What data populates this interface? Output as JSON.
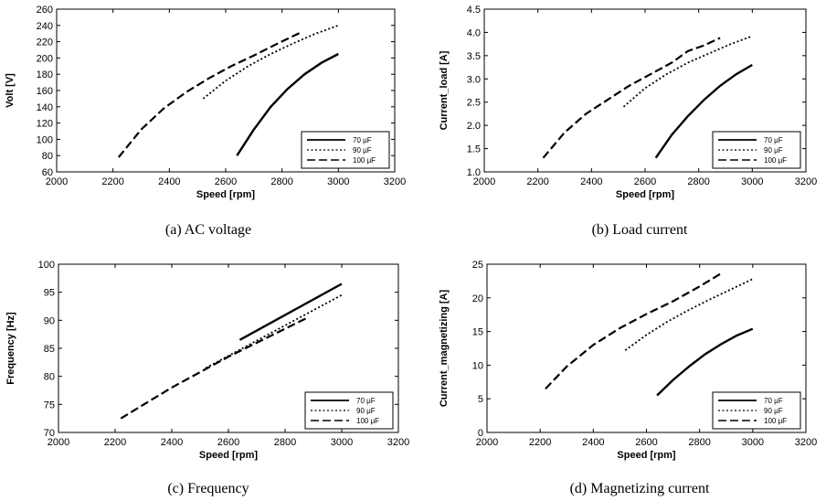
{
  "chart_data": [
    {
      "type": "line",
      "caption": "(a) AC voltage",
      "xlabel": "Speed [rpm]",
      "ylabel": "Volt [V]",
      "xlim": [
        2000,
        3200
      ],
      "ylim": [
        60,
        260
      ],
      "xticks": [
        "2000",
        "2200",
        "2400",
        "2600",
        "2800",
        "3000",
        "3200"
      ],
      "yticks": [
        "60",
        "80",
        "100",
        "120",
        "140",
        "160",
        "180",
        "200",
        "220",
        "240",
        "260"
      ],
      "legend_position": "bottom-right",
      "series": [
        {
          "name": "70 μF",
          "style": "solid",
          "x": [
            2640,
            2700,
            2760,
            2820,
            2880,
            2940,
            3000
          ],
          "y": [
            80,
            112,
            140,
            162,
            180,
            194,
            205
          ]
        },
        {
          "name": "90 μF",
          "style": "dotted",
          "x": [
            2520,
            2600,
            2680,
            2760,
            2840,
            2920,
            3000
          ],
          "y": [
            150,
            172,
            190,
            205,
            218,
            230,
            240
          ]
        },
        {
          "name": "100 μF",
          "style": "dashed",
          "x": [
            2220,
            2300,
            2380,
            2460,
            2540,
            2620,
            2700,
            2780,
            2870
          ],
          "y": [
            78,
            112,
            138,
            158,
            175,
            190,
            203,
            217,
            232
          ]
        }
      ]
    },
    {
      "type": "line",
      "caption": "(b) Load current",
      "xlabel": "Speed [rpm]",
      "ylabel": "Current_load [A]",
      "xlim": [
        2000,
        3200
      ],
      "ylim": [
        1.0,
        4.5
      ],
      "xticks": [
        "2000",
        "2200",
        "2400",
        "2600",
        "2800",
        "3000",
        "3200"
      ],
      "yticks": [
        "1.0",
        "1.5",
        "2.0",
        "2.5",
        "3.0",
        "3.5",
        "4.0",
        "4.5"
      ],
      "legend_position": "bottom-right",
      "series": [
        {
          "name": "70 μF",
          "style": "solid",
          "x": [
            2640,
            2700,
            2760,
            2820,
            2880,
            2940,
            3000
          ],
          "y": [
            1.3,
            1.8,
            2.2,
            2.55,
            2.85,
            3.1,
            3.3
          ]
        },
        {
          "name": "90 μF",
          "style": "dotted",
          "x": [
            2520,
            2600,
            2680,
            2760,
            2840,
            2920,
            3000
          ],
          "y": [
            2.4,
            2.8,
            3.1,
            3.35,
            3.55,
            3.75,
            3.92
          ]
        },
        {
          "name": "100 μF",
          "style": "dashed",
          "x": [
            2220,
            2300,
            2380,
            2460,
            2540,
            2620,
            2700,
            2760,
            2820,
            2880
          ],
          "y": [
            1.3,
            1.85,
            2.25,
            2.55,
            2.85,
            3.1,
            3.35,
            3.6,
            3.72,
            3.88
          ]
        }
      ]
    },
    {
      "type": "line",
      "caption": "(c) Frequency",
      "xlabel": "Speed [rpm]",
      "ylabel": "Frequency [Hz]",
      "xlim": [
        2000,
        3200
      ],
      "ylim": [
        70,
        100
      ],
      "xticks": [
        "2000",
        "2200",
        "2400",
        "2600",
        "2800",
        "3000",
        "3200"
      ],
      "yticks": [
        "70",
        "75",
        "80",
        "85",
        "90",
        "95",
        "100"
      ],
      "legend_position": "bottom-right",
      "series": [
        {
          "name": "70 μF",
          "style": "solid",
          "x": [
            2640,
            3000
          ],
          "y": [
            86.5,
            96.5
          ]
        },
        {
          "name": "90 μF",
          "style": "dotted",
          "x": [
            2520,
            3000
          ],
          "y": [
            81.5,
            94.5
          ]
        },
        {
          "name": "100 μF",
          "style": "dashed",
          "x": [
            2220,
            2400,
            2600,
            2880
          ],
          "y": [
            72.5,
            78,
            83.5,
            90.5
          ]
        }
      ]
    },
    {
      "type": "line",
      "caption": "(d) Magnetizing current",
      "xlabel": "Speed [rpm]",
      "ylabel": "Current_magnetizing [A]",
      "xlim": [
        2000,
        3200
      ],
      "ylim": [
        0,
        25
      ],
      "xticks": [
        "2000",
        "2200",
        "2400",
        "2600",
        "2800",
        "3000",
        "3200"
      ],
      "yticks": [
        "0",
        "5",
        "10",
        "15",
        "20",
        "25"
      ],
      "legend_position": "bottom-right",
      "series": [
        {
          "name": "70 μF",
          "style": "solid",
          "x": [
            2640,
            2700,
            2760,
            2820,
            2880,
            2940,
            3000
          ],
          "y": [
            5.5,
            7.8,
            9.8,
            11.6,
            13.1,
            14.4,
            15.4
          ]
        },
        {
          "name": "90 μF",
          "style": "dotted",
          "x": [
            2520,
            2600,
            2680,
            2760,
            2840,
            2920,
            3000
          ],
          "y": [
            12.2,
            14.5,
            16.5,
            18.2,
            19.8,
            21.3,
            22.8
          ]
        },
        {
          "name": "100 μF",
          "style": "dashed",
          "x": [
            2220,
            2300,
            2400,
            2500,
            2600,
            2700,
            2800,
            2880
          ],
          "y": [
            6.5,
            9.8,
            13.0,
            15.5,
            17.6,
            19.5,
            21.7,
            23.6
          ]
        }
      ]
    }
  ]
}
